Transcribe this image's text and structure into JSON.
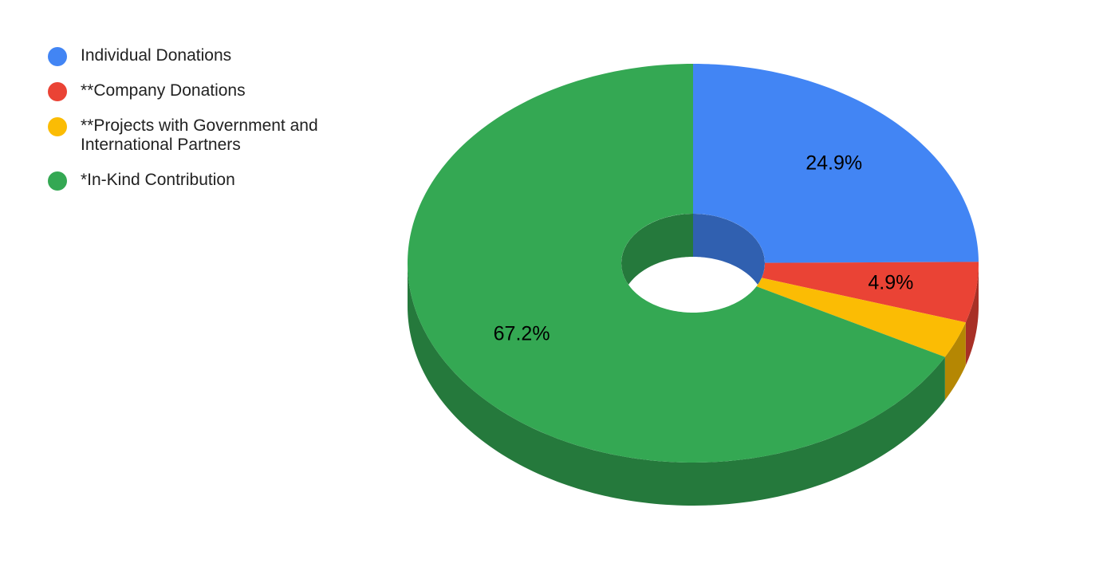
{
  "chart_data": {
    "type": "pie",
    "style": "3d-donut",
    "categories": [
      "Individual Donations",
      "**Company Donations",
      "**Projects with Government and International Partners",
      "*In-Kind Contribution"
    ],
    "values": [
      24.9,
      4.9,
      3.0,
      67.2
    ],
    "value_labels": [
      "24.9%",
      "4.9%",
      null,
      "67.2%"
    ],
    "colors": [
      "#4285f4",
      "#ea4335",
      "#fbbc04",
      "#34a853"
    ],
    "legend": "top-left"
  }
}
